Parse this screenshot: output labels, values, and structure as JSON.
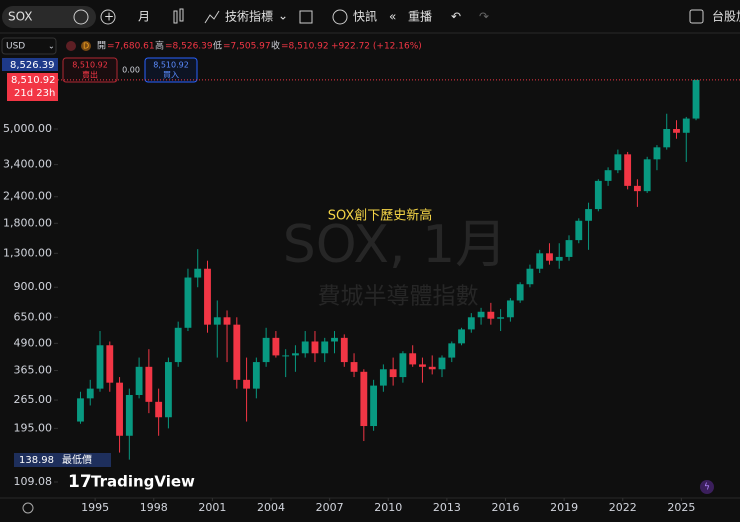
{
  "toolbar": {
    "symbol": "SOX",
    "interval": "月",
    "indicators": "技術指標",
    "alerts": "快訊",
    "replay": "重播",
    "right_text": "台股加"
  },
  "legend": {
    "currency": "USD",
    "items": [
      {
        "label": "開",
        "value": "=7,680.61"
      },
      {
        "label": "高",
        "value": "=8,526.39"
      },
      {
        "label": "低",
        "value": "=7,505.97"
      },
      {
        "label": "收",
        "value": "=8,510.92"
      }
    ],
    "change": "+922.72 (+12.16%)",
    "sell": {
      "price": "8,510.92",
      "label": "賣出"
    },
    "spread": "0.00",
    "buy": {
      "price": "8,510.92",
      "label": "買入"
    }
  },
  "price_badges": {
    "high": "8,526.39",
    "last": "8,510.92",
    "countdown": "21d 23h",
    "low": "138.98",
    "low_label": "最低價"
  },
  "watermark": {
    "title": "SOX, 1月",
    "subtitle": "費城半導體指數"
  },
  "logo": "TradingView",
  "chart_data": {
    "type": "candlestick",
    "annotation": "SOX創下歷史新高",
    "log_scale": true,
    "grid": false,
    "up_color": "#089981",
    "down_color": "#f23645",
    "x": [
      1994.25,
      1994.75,
      1995.25,
      1995.75,
      1996.25,
      1996.75,
      1997.25,
      1997.75,
      1998.25,
      1998.75,
      1999.25,
      1999.75,
      2000.25,
      2000.75,
      2001.25,
      2001.75,
      2002.25,
      2002.75,
      2003.25,
      2003.75,
      2004.25,
      2004.75,
      2005.25,
      2005.75,
      2006.25,
      2006.75,
      2007.25,
      2007.75,
      2008.25,
      2008.75,
      2009.25,
      2009.75,
      2010.25,
      2010.75,
      2011.25,
      2011.75,
      2012.25,
      2012.75,
      2013.25,
      2013.75,
      2014.25,
      2014.75,
      2015.25,
      2015.75,
      2016.25,
      2016.75,
      2017.25,
      2017.75,
      2018.25,
      2018.75,
      2019.25,
      2019.75,
      2020.25,
      2020.75,
      2021.25,
      2021.75,
      2022.25,
      2022.75,
      2023.25,
      2023.75,
      2024.25,
      2024.75,
      2025.25,
      2025.75
    ],
    "open": [
      210,
      270,
      300,
      480,
      320,
      180,
      280,
      380,
      260,
      220,
      400,
      580,
      1000,
      1100,
      600,
      650,
      600,
      330,
      300,
      400,
      520,
      430,
      430,
      440,
      500,
      440,
      500,
      520,
      400,
      360,
      200,
      310,
      370,
      340,
      440,
      390,
      380,
      370,
      420,
      490,
      570,
      650,
      690,
      640,
      650,
      780,
      930,
      1100,
      1300,
      1200,
      1250,
      1500,
      1850,
      2100,
      2850,
      3200,
      3800,
      2700,
      2550,
      3600,
      4100,
      5000,
      4800,
      5600
    ],
    "high": [
      290,
      330,
      560,
      500,
      340,
      300,
      420,
      460,
      300,
      420,
      620,
      1100,
      1360,
      1200,
      780,
      700,
      650,
      420,
      420,
      580,
      560,
      460,
      480,
      560,
      560,
      520,
      560,
      540,
      440,
      370,
      330,
      390,
      420,
      450,
      480,
      420,
      430,
      430,
      500,
      580,
      680,
      720,
      760,
      710,
      800,
      950,
      1150,
      1350,
      1450,
      1450,
      1580,
      1900,
      2250,
      2900,
      3300,
      4000,
      3900,
      2900,
      3700,
      4200,
      5900,
      5500,
      5700,
      8526.39
    ],
    "low": [
      205,
      250,
      290,
      290,
      150,
      138.98,
      270,
      230,
      180,
      195,
      380,
      560,
      900,
      550,
      420,
      400,
      300,
      210,
      270,
      380,
      420,
      340,
      360,
      420,
      400,
      400,
      440,
      380,
      340,
      170,
      190,
      290,
      310,
      320,
      380,
      320,
      350,
      340,
      400,
      480,
      550,
      600,
      600,
      560,
      620,
      760,
      900,
      1050,
      1150,
      1100,
      1200,
      1450,
      1350,
      2050,
      2700,
      3100,
      2600,
      2150,
      2500,
      3200,
      4000,
      4500,
      3500,
      5500
    ],
    "close": [
      270,
      300,
      480,
      320,
      180,
      280,
      380,
      260,
      220,
      400,
      580,
      1000,
      1100,
      600,
      650,
      600,
      330,
      300,
      400,
      520,
      430,
      430,
      440,
      500,
      440,
      500,
      520,
      400,
      360,
      200,
      310,
      370,
      340,
      440,
      390,
      380,
      370,
      420,
      490,
      570,
      650,
      690,
      640,
      650,
      780,
      930,
      1100,
      1300,
      1200,
      1250,
      1500,
      1850,
      2100,
      2850,
      3200,
      3800,
      2700,
      2550,
      3600,
      4100,
      5000,
      4800,
      5600,
      8510.92
    ],
    "xlim": [
      1993.1,
      2028
    ],
    "xticks": [
      1995,
      1998,
      2001,
      2004,
      2007,
      2010,
      2013,
      2016,
      2019,
      2022,
      2025
    ],
    "ylim": [
      91.7,
      13700
    ],
    "yticks": [
      109.08,
      {
        "value": 195,
        "label": "195.00"
      },
      {
        "value": 265,
        "label": "265.00"
      },
      {
        "value": 365,
        "label": "365.00"
      },
      {
        "value": 490,
        "label": "490.00"
      },
      {
        "value": 650,
        "label": "650.00"
      },
      {
        "value": 900,
        "label": "900.00"
      },
      {
        "value": 1300,
        "label": "1,300.00"
      },
      {
        "value": 1800,
        "label": "1,800.00"
      },
      {
        "value": 2400,
        "label": "2,400.00"
      },
      {
        "value": 3400,
        "label": "3,400.00"
      },
      {
        "value": 5000,
        "label": "5,000.00"
      }
    ]
  }
}
